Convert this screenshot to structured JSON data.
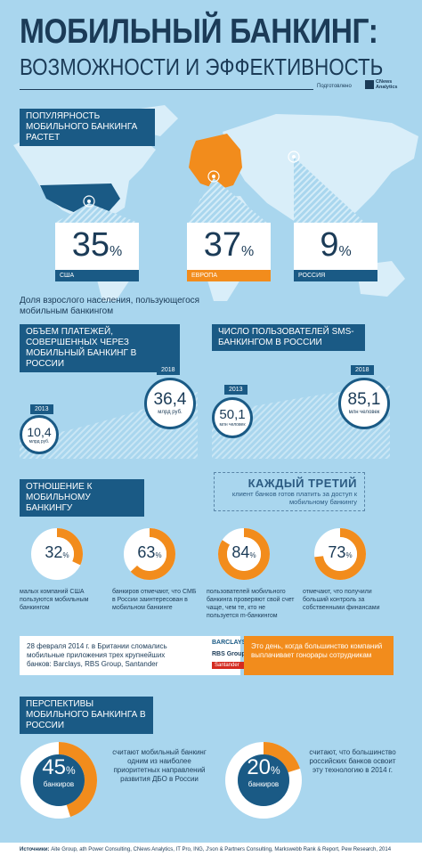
{
  "header": {
    "title": "МОБИЛЬНЫЙ БАНКИНГ:",
    "subtitle": "ВОЗМОЖНОСТИ И ЭФФЕКТИВНОСТЬ",
    "prepared_by": "Подготовлено",
    "logo_line1": "CNews",
    "logo_line2": "Analytics"
  },
  "popularity": {
    "label": "ПОПУЛЯРНОСТЬ МОБИЛЬНОГО БАНКИНГА РАСТЕТ",
    "cards": [
      {
        "value": "35",
        "unit": "%",
        "region": "США",
        "color": "#1a5a85"
      },
      {
        "value": "37",
        "unit": "%",
        "region": "ЕВРОПА",
        "color": "#f28c1c"
      },
      {
        "value": "9",
        "unit": "%",
        "region": "РОССИЯ",
        "color": "#1a5a85"
      }
    ],
    "caption": "Доля взрослого населения, пользующегося мобильным банкингом"
  },
  "payments": {
    "label": "ОБЪЕМ ПЛАТЕЖЕЙ, СОВЕРШЕННЫХ ЧЕРЕЗ МОБИЛЬНЫЙ БАНКИНГ В РОССИИ",
    "year_start": "2013",
    "year_end": "2018",
    "value_start": "10,4",
    "unit_start": "млрд руб.",
    "value_end": "36,4",
    "unit_end": "млрд руб."
  },
  "sms": {
    "label": "ЧИСЛО ПОЛЬЗОВАТЕЛЕЙ SMS-БАНКИНГОМ В РОССИИ",
    "year_start": "2013",
    "year_end": "2018",
    "value_start": "50,1",
    "unit_start": "млн человек",
    "value_end": "85,1",
    "unit_end": "млн человек"
  },
  "attitude": {
    "label": "ОТНОШЕНИЕ К МОБИЛЬНОМУ БАНКИНГУ",
    "callout_title": "КАЖДЫЙ ТРЕТИЙ",
    "callout_text": "клиент банков готов платить за доступ к мобильному банкингу",
    "donuts": [
      {
        "value": "32",
        "unit": "%",
        "fraction": 0.32,
        "text": "малых компаний США пользуются мобильным банкингом"
      },
      {
        "value": "63",
        "unit": "%",
        "fraction": 0.63,
        "text": "банкиров отмечают, что СМБ в России заинтересован в мобильном банкинге"
      },
      {
        "value": "84",
        "unit": "%",
        "fraction": 0.84,
        "text": "пользователей мобильного банкинга проверяют свой счет чаще, чем те, кто не пользуется m-банкингом"
      },
      {
        "value": "73",
        "unit": "%",
        "fraction": 0.73,
        "text": "отмечают, что получили больший контроль за собственными финансами"
      }
    ]
  },
  "uk": {
    "text": "28 февраля 2014 г. в Британии сломались мобильные приложения трех крупнейших банков: Barclays, RBS Group, Santander",
    "banks": [
      "BARCLAYS",
      "RBS Group",
      "Santander"
    ],
    "orange_text": "Это день, когда большинство компаний выплачивает гонорары сотрудникам"
  },
  "prospects": {
    "label": "ПЕРСПЕКТИВЫ МОБИЛЬНОГО БАНКИНГА В РОССИИ",
    "left": {
      "value": "45",
      "unit": "%",
      "fraction": 0.45,
      "who": "банкиров",
      "text": "считают мобильный банкинг одним из наиболее приоритетных направлений развития ДБО в России"
    },
    "right": {
      "value": "20",
      "unit": "%",
      "fraction": 0.2,
      "who": "банкиров",
      "text": "считают, что большинство российских банков освоит эту технологию в 2014 г."
    }
  },
  "sources": {
    "label": "Источники:",
    "text": "Aite Group, ath Power Consulting, CNews Analytics, IT Pro, ING, J'son & Partners Consulting, Markswebb Rank & Report, Pew Research, 2014"
  },
  "colors": {
    "blue": "#1a5a85",
    "orange": "#f28c1c",
    "bg": "#a9d6ee"
  }
}
